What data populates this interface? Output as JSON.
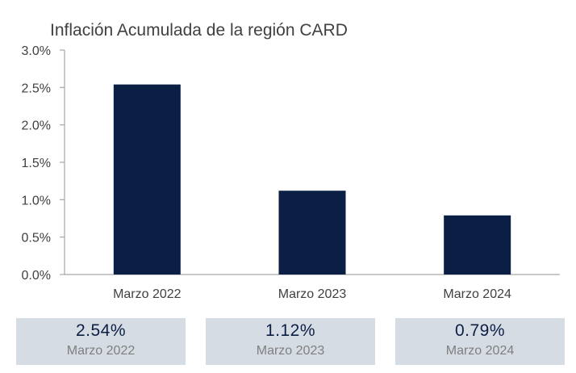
{
  "chart_data": {
    "type": "bar",
    "title": "Inflación Acumulada de la región CARD",
    "categories": [
      "Marzo 2022",
      "Marzo 2023",
      "Marzo 2024"
    ],
    "values": [
      2.54,
      1.12,
      0.79
    ],
    "ylim": [
      0,
      3.0
    ],
    "yticks": [
      "0.0%",
      "0.5%",
      "1.0%",
      "1.5%",
      "2.0%",
      "2.5%",
      "3.0%"
    ],
    "ytick_values": [
      0,
      0.5,
      1.0,
      1.5,
      2.0,
      2.5,
      3.0
    ],
    "bar_color": "#0b1f45",
    "grid": false,
    "legend": "none"
  },
  "summary": [
    {
      "value": "2.54%",
      "label": "Marzo 2022"
    },
    {
      "value": "1.12%",
      "label": "Marzo 2023"
    },
    {
      "value": "0.79%",
      "label": "Marzo 2024"
    }
  ],
  "colors": {
    "bar": "#0b1f45",
    "card_background": "#d6dce4",
    "card_value": "#0b1f45",
    "card_label": "#7f7f7f"
  }
}
